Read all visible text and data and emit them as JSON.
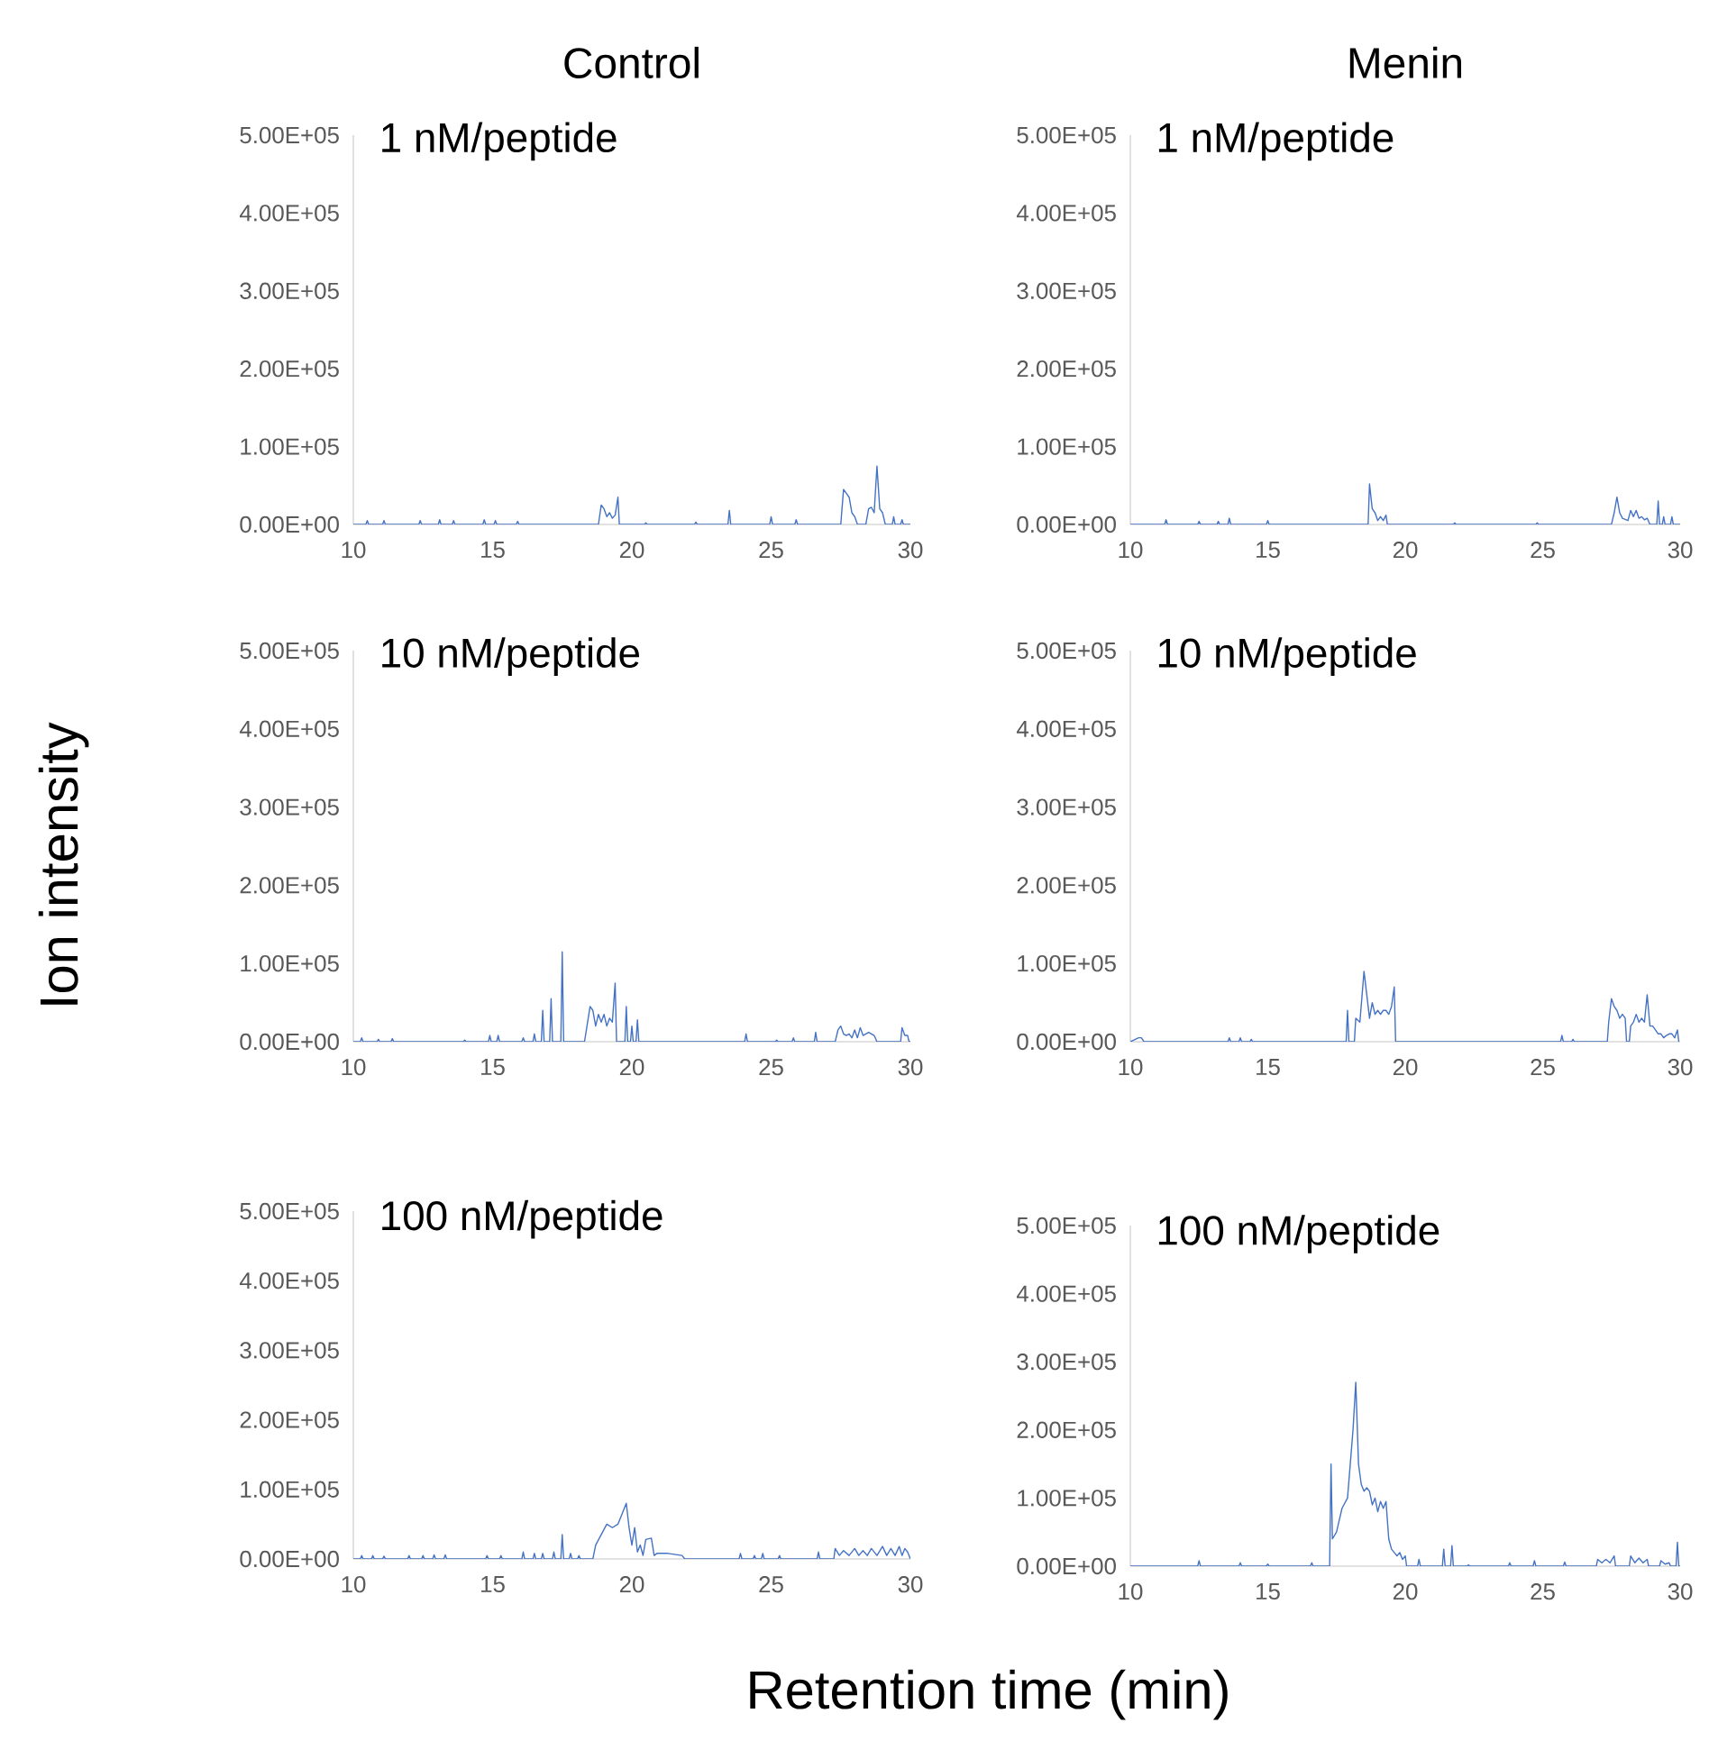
{
  "chart_data": [
    {
      "type": "line",
      "title": "Control",
      "annotations": [
        "1 nM/peptide"
      ],
      "color": "#4472c4",
      "xlim": [
        10,
        30
      ],
      "ylim": [
        0,
        500000
      ],
      "xticks": [
        10,
        15,
        20,
        25,
        30
      ],
      "yticks": [
        {
          "value": 0,
          "label": "0.00E+00"
        },
        {
          "value": 100000,
          "label": "1.00E+05"
        },
        {
          "value": 200000,
          "label": "2.00E+05"
        },
        {
          "value": 300000,
          "label": "3.00E+05"
        },
        {
          "value": 400000,
          "label": "4.00E+05"
        },
        {
          "value": 500000,
          "label": "5.00E+05"
        }
      ],
      "x": [
        10,
        10.45,
        10.5,
        10.55,
        11.05,
        11.1,
        11.15,
        12.35,
        12.4,
        12.45,
        13.05,
        13.1,
        13.15,
        13.55,
        13.6,
        13.65,
        14.65,
        14.7,
        14.75,
        15.05,
        15.1,
        15.15,
        15.85,
        15.9,
        15.95,
        18.8,
        18.9,
        19.0,
        19.1,
        19.2,
        19.3,
        19.4,
        19.5,
        19.55,
        20.45,
        20.5,
        20.55,
        22.25,
        22.3,
        22.35,
        23.45,
        23.5,
        23.55,
        24.95,
        25.0,
        25.05,
        25.85,
        25.9,
        25.95,
        27.5,
        27.6,
        27.7,
        27.8,
        27.9,
        28.0,
        28.1,
        28.4,
        28.5,
        28.6,
        28.7,
        28.8,
        28.9,
        29.0,
        29.1,
        29.35,
        29.4,
        29.45,
        29.65,
        29.7,
        29.75,
        30
      ],
      "values": [
        0,
        0,
        5000,
        0,
        0,
        5000,
        0,
        0,
        5000,
        0,
        0,
        6000,
        0,
        0,
        5000,
        0,
        0,
        6000,
        0,
        0,
        5000,
        0,
        0,
        4000,
        0,
        0,
        25000,
        20000,
        10000,
        15000,
        8000,
        12000,
        35000,
        0,
        0,
        2000,
        0,
        0,
        3000,
        0,
        0,
        18000,
        0,
        0,
        10000,
        0,
        0,
        6000,
        0,
        0,
        45000,
        40000,
        35000,
        15000,
        10000,
        0,
        0,
        20000,
        22000,
        15000,
        75000,
        20000,
        15000,
        0,
        0,
        10000,
        0,
        0,
        6000,
        0,
        0
      ]
    },
    {
      "type": "line",
      "title": "Menin",
      "annotations": [
        "1 nM/peptide"
      ],
      "color": "#4472c4",
      "xlim": [
        10,
        30
      ],
      "ylim": [
        0,
        500000
      ],
      "xticks": [
        10,
        15,
        20,
        25,
        30
      ],
      "yticks": [
        {
          "value": 0,
          "label": "0.00E+00"
        },
        {
          "value": 100000,
          "label": "1.00E+05"
        },
        {
          "value": 200000,
          "label": "2.00E+05"
        },
        {
          "value": 300000,
          "label": "3.00E+05"
        },
        {
          "value": 400000,
          "label": "4.00E+05"
        },
        {
          "value": 500000,
          "label": "5.00E+05"
        }
      ],
      "x": [
        10,
        11.25,
        11.3,
        11.35,
        12.45,
        12.5,
        12.55,
        13.15,
        13.2,
        13.25,
        13.55,
        13.6,
        13.65,
        14.95,
        15.0,
        15.05,
        18.65,
        18.7,
        18.8,
        18.9,
        19.0,
        19.1,
        19.2,
        19.3,
        19.35,
        21.75,
        21.8,
        21.85,
        24.75,
        24.8,
        24.85,
        27.5,
        27.6,
        27.7,
        27.8,
        27.9,
        28.1,
        28.2,
        28.3,
        28.4,
        28.5,
        28.6,
        28.7,
        28.8,
        28.9,
        29.15,
        29.2,
        29.25,
        29.35,
        29.4,
        29.45,
        29.65,
        29.7,
        29.75,
        30
      ],
      "values": [
        0,
        0,
        6000,
        0,
        0,
        4000,
        0,
        0,
        4000,
        0,
        0,
        8000,
        0,
        0,
        5000,
        0,
        0,
        52000,
        20000,
        15000,
        5000,
        10000,
        5000,
        12000,
        0,
        0,
        2000,
        0,
        0,
        2000,
        0,
        0,
        15000,
        35000,
        15000,
        8000,
        5000,
        18000,
        10000,
        18000,
        8000,
        10000,
        6000,
        8000,
        0,
        0,
        30000,
        0,
        0,
        10000,
        0,
        0,
        10000,
        0,
        0
      ]
    },
    {
      "type": "line",
      "ylabel": "Ion intensity",
      "annotations": [
        "10 nM/peptide"
      ],
      "color": "#4472c4",
      "xlim": [
        10,
        30
      ],
      "ylim": [
        0,
        500000
      ],
      "xticks": [
        10,
        15,
        20,
        25,
        30
      ],
      "yticks": [
        {
          "value": 0,
          "label": "0.00E+00"
        },
        {
          "value": 100000,
          "label": "1.00E+05"
        },
        {
          "value": 200000,
          "label": "2.00E+05"
        },
        {
          "value": 300000,
          "label": "3.00E+05"
        },
        {
          "value": 400000,
          "label": "4.00E+05"
        },
        {
          "value": 500000,
          "label": "5.00E+05"
        }
      ],
      "x": [
        10,
        10.25,
        10.3,
        10.35,
        10.85,
        10.9,
        10.95,
        11.35,
        11.4,
        11.45,
        13.95,
        14.0,
        14.05,
        14.85,
        14.9,
        14.95,
        15.15,
        15.2,
        15.25,
        16.05,
        16.1,
        16.15,
        16.45,
        16.5,
        16.55,
        16.75,
        16.8,
        16.85,
        17.05,
        17.1,
        17.15,
        17.45,
        17.5,
        17.55,
        18.3,
        18.5,
        18.6,
        18.7,
        18.8,
        18.9,
        19.0,
        19.1,
        19.2,
        19.3,
        19.4,
        19.45,
        19.75,
        19.8,
        19.85,
        19.95,
        20.0,
        20.05,
        20.15,
        20.2,
        20.25,
        24.05,
        24.1,
        24.15,
        25.15,
        25.2,
        25.25,
        25.75,
        25.8,
        25.85,
        26.55,
        26.6,
        26.65,
        27.3,
        27.4,
        27.5,
        27.6,
        27.7,
        27.8,
        27.9,
        28.0,
        28.1,
        28.2,
        28.3,
        28.5,
        28.7,
        28.8,
        29.65,
        29.7,
        29.8,
        29.9,
        29.95,
        30
      ],
      "values": [
        0,
        0,
        5000,
        0,
        0,
        3000,
        0,
        0,
        4000,
        0,
        0,
        2000,
        0,
        0,
        8000,
        0,
        0,
        8000,
        0,
        0,
        5000,
        0,
        0,
        10000,
        0,
        0,
        40000,
        0,
        0,
        55000,
        0,
        0,
        115000,
        0,
        0,
        45000,
        40000,
        20000,
        35000,
        25000,
        35000,
        20000,
        30000,
        25000,
        75000,
        0,
        0,
        45000,
        0,
        0,
        20000,
        0,
        0,
        28000,
        0,
        0,
        10000,
        0,
        0,
        2000,
        0,
        0,
        5000,
        0,
        0,
        12000,
        0,
        0,
        15000,
        20000,
        10000,
        8000,
        10000,
        5000,
        15000,
        5000,
        18000,
        8000,
        12000,
        8000,
        0,
        0,
        18000,
        8000,
        8000,
        0,
        0
      ]
    },
    {
      "type": "line",
      "annotations": [
        "10 nM/peptide"
      ],
      "color": "#4472c4",
      "xlim": [
        10,
        30
      ],
      "ylim": [
        0,
        500000
      ],
      "xticks": [
        10,
        15,
        20,
        25,
        30
      ],
      "yticks": [
        {
          "value": 0,
          "label": "0.00E+00"
        },
        {
          "value": 100000,
          "label": "1.00E+05"
        },
        {
          "value": 200000,
          "label": "2.00E+05"
        },
        {
          "value": 300000,
          "label": "3.00E+05"
        },
        {
          "value": 400000,
          "label": "4.00E+05"
        },
        {
          "value": 500000,
          "label": "5.00E+05"
        }
      ],
      "x": [
        10,
        10.3,
        10.4,
        10.5,
        13.55,
        13.6,
        13.65,
        13.95,
        14.0,
        14.05,
        14.35,
        14.4,
        14.45,
        17.85,
        17.9,
        17.95,
        18.15,
        18.2,
        18.35,
        18.5,
        18.6,
        18.7,
        18.8,
        18.9,
        19.0,
        19.1,
        19.2,
        19.3,
        19.4,
        19.5,
        19.6,
        19.65,
        25.65,
        25.7,
        25.75,
        26.05,
        26.1,
        26.15,
        27.35,
        27.4,
        27.5,
        27.6,
        27.7,
        27.8,
        27.9,
        28.0,
        28.05,
        28.15,
        28.2,
        28.3,
        28.4,
        28.5,
        28.6,
        28.7,
        28.8,
        28.9,
        29.0,
        29.1,
        29.2,
        29.3,
        29.4,
        29.5,
        29.6,
        29.7,
        29.8,
        29.9,
        29.95
      ],
      "values": [
        0,
        5000,
        5000,
        0,
        0,
        5000,
        0,
        0,
        5000,
        0,
        0,
        3000,
        0,
        0,
        40000,
        0,
        0,
        30000,
        25000,
        90000,
        60000,
        30000,
        50000,
        35000,
        40000,
        35000,
        40000,
        40000,
        35000,
        45000,
        70000,
        0,
        0,
        8000,
        0,
        0,
        3000,
        0,
        0,
        25000,
        55000,
        45000,
        40000,
        30000,
        35000,
        30000,
        0,
        0,
        20000,
        25000,
        35000,
        25000,
        30000,
        25000,
        60000,
        20000,
        20000,
        15000,
        10000,
        10000,
        5000,
        8000,
        10000,
        10000,
        5000,
        15000,
        0
      ]
    },
    {
      "type": "line",
      "xlabel": "Retention time (min)",
      "annotations": [
        "100 nM/peptide"
      ],
      "color": "#4472c4",
      "xlim": [
        10,
        30
      ],
      "ylim": [
        0,
        500000
      ],
      "xticks": [
        10,
        15,
        20,
        25,
        30
      ],
      "yticks": [
        {
          "value": 0,
          "label": "0.00E+00"
        },
        {
          "value": 100000,
          "label": "1.00E+05"
        },
        {
          "value": 200000,
          "label": "2.00E+05"
        },
        {
          "value": 300000,
          "label": "3.00E+05"
        },
        {
          "value": 400000,
          "label": "4.00E+05"
        },
        {
          "value": 500000,
          "label": "5.00E+05"
        }
      ],
      "x": [
        10,
        10.25,
        10.3,
        10.35,
        10.65,
        10.7,
        10.75,
        11.05,
        11.1,
        11.15,
        11.95,
        12.0,
        12.05,
        12.45,
        12.5,
        12.55,
        12.85,
        12.9,
        12.95,
        13.25,
        13.3,
        13.35,
        14.75,
        14.8,
        14.85,
        15.25,
        15.3,
        15.35,
        16.05,
        16.1,
        16.15,
        16.45,
        16.5,
        16.55,
        16.75,
        16.8,
        16.85,
        17.15,
        17.2,
        17.25,
        17.45,
        17.5,
        17.55,
        17.75,
        17.8,
        17.85,
        18.05,
        18.1,
        18.15,
        18.6,
        18.7,
        18.9,
        19.1,
        19.3,
        19.5,
        19.7,
        19.8,
        19.9,
        20.0,
        20.1,
        20.2,
        20.3,
        20.4,
        20.5,
        20.7,
        20.8,
        20.9,
        21.3,
        21.8,
        21.9,
        23.85,
        23.9,
        23.95,
        24.35,
        24.4,
        24.45,
        24.65,
        24.7,
        24.75,
        25.25,
        25.3,
        25.35,
        26.65,
        26.7,
        26.75,
        27.25,
        27.3,
        27.45,
        27.6,
        27.8,
        28.0,
        28.15,
        28.3,
        28.45,
        28.6,
        28.8,
        29.0,
        29.15,
        29.3,
        29.45,
        29.6,
        29.7,
        29.8,
        29.9,
        30
      ],
      "values": [
        0,
        0,
        5000,
        0,
        0,
        5000,
        0,
        0,
        4000,
        0,
        0,
        5000,
        0,
        0,
        5000,
        0,
        0,
        6000,
        0,
        0,
        6000,
        0,
        0,
        5000,
        0,
        0,
        5000,
        0,
        0,
        10000,
        0,
        0,
        8000,
        0,
        0,
        8000,
        0,
        0,
        10000,
        0,
        0,
        35000,
        0,
        0,
        8000,
        0,
        0,
        5000,
        0,
        0,
        20000,
        35000,
        50000,
        45000,
        50000,
        70000,
        80000,
        45000,
        20000,
        45000,
        10000,
        20000,
        5000,
        28000,
        30000,
        5000,
        8000,
        8000,
        5000,
        0,
        0,
        8000,
        0,
        0,
        5000,
        0,
        0,
        8000,
        0,
        0,
        5000,
        0,
        0,
        10000,
        0,
        0,
        15000,
        5000,
        12000,
        5000,
        15000,
        5000,
        12000,
        5000,
        15000,
        5000,
        18000,
        5000,
        15000,
        5000,
        18000,
        5000,
        15000,
        10000,
        0
      ]
    },
    {
      "type": "line",
      "annotations": [
        "100 nM/peptide"
      ],
      "color": "#4472c4",
      "xlim": [
        10,
        30
      ],
      "ylim": [
        0,
        500000
      ],
      "xticks": [
        10,
        15,
        20,
        25,
        30
      ],
      "yticks": [
        {
          "value": 0,
          "label": "0.00E+00"
        },
        {
          "value": 100000,
          "label": "1.00E+05"
        },
        {
          "value": 200000,
          "label": "2.00E+05"
        },
        {
          "value": 300000,
          "label": "3.00E+05"
        },
        {
          "value": 400000,
          "label": "4.00E+05"
        },
        {
          "value": 500000,
          "label": "5.00E+05"
        }
      ],
      "x": [
        10,
        12.45,
        12.5,
        12.55,
        13.95,
        14.0,
        14.05,
        14.95,
        15.0,
        15.05,
        16.55,
        16.6,
        16.65,
        17.25,
        17.3,
        17.35,
        17.5,
        17.7,
        17.9,
        18.0,
        18.1,
        18.2,
        18.3,
        18.4,
        18.5,
        18.6,
        18.7,
        18.8,
        18.9,
        19.0,
        19.1,
        19.2,
        19.3,
        19.4,
        19.5,
        19.6,
        19.7,
        19.8,
        19.9,
        20.0,
        20.05,
        20.45,
        20.5,
        20.55,
        21.35,
        21.4,
        21.45,
        21.65,
        21.7,
        21.75,
        22.25,
        22.3,
        22.35,
        23.75,
        23.8,
        23.85,
        24.65,
        24.7,
        24.75,
        25.75,
        25.8,
        25.85,
        26.95,
        27.0,
        27.15,
        27.3,
        27.45,
        27.6,
        27.65,
        28.15,
        28.2,
        28.35,
        28.5,
        28.65,
        28.8,
        28.85,
        29.25,
        29.3,
        29.45,
        29.6,
        29.65,
        29.85,
        29.9,
        29.95,
        30
      ],
      "values": [
        0,
        0,
        8000,
        0,
        0,
        5000,
        0,
        0,
        3000,
        0,
        0,
        5000,
        0,
        0,
        150000,
        40000,
        50000,
        85000,
        100000,
        150000,
        200000,
        270000,
        150000,
        120000,
        110000,
        115000,
        110000,
        90000,
        100000,
        80000,
        95000,
        85000,
        95000,
        40000,
        25000,
        20000,
        15000,
        20000,
        10000,
        15000,
        0,
        0,
        10000,
        0,
        0,
        25000,
        0,
        0,
        30000,
        0,
        0,
        2000,
        0,
        0,
        5000,
        0,
        0,
        8000,
        0,
        0,
        6000,
        0,
        0,
        10000,
        5000,
        10000,
        5000,
        15000,
        0,
        0,
        15000,
        5000,
        12000,
        5000,
        10000,
        0,
        0,
        8000,
        3000,
        5000,
        0,
        0,
        35000,
        0,
        0
      ]
    }
  ]
}
